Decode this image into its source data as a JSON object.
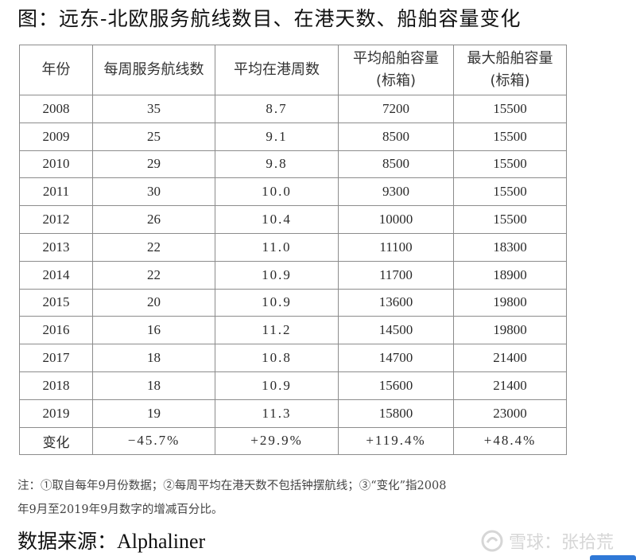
{
  "title": "图：远东-北欧服务航线数目、在港天数、船舶容量变化",
  "table": {
    "headers": [
      [
        "年份"
      ],
      [
        "每周服务航线数"
      ],
      [
        "平均在港周数"
      ],
      [
        "平均船舶容量",
        "(标箱)"
      ],
      [
        "最大船舶容量",
        "(标箱)"
      ]
    ],
    "rows": [
      [
        "2008",
        "35",
        "8.7",
        "7200",
        "15500"
      ],
      [
        "2009",
        "25",
        "9.1",
        "8500",
        "15500"
      ],
      [
        "2010",
        "29",
        "9.8",
        "8500",
        "15500"
      ],
      [
        "2011",
        "30",
        "10.0",
        "9300",
        "15500"
      ],
      [
        "2012",
        "26",
        "10.4",
        "10000",
        "15500"
      ],
      [
        "2013",
        "22",
        "11.0",
        "11100",
        "18300"
      ],
      [
        "2014",
        "22",
        "10.9",
        "11700",
        "18900"
      ],
      [
        "2015",
        "20",
        "10.9",
        "13600",
        "19800"
      ],
      [
        "2016",
        "16",
        "11.2",
        "14500",
        "19800"
      ],
      [
        "2017",
        "18",
        "10.8",
        "14700",
        "21400"
      ],
      [
        "2018",
        "18",
        "10.9",
        "15600",
        "21400"
      ],
      [
        "2019",
        "19",
        "11.3",
        "15800",
        "23000"
      ]
    ],
    "change_row": [
      "变化",
      "−45.7%",
      "+29.9%",
      "+119.4%",
      "+48.4%"
    ]
  },
  "note": {
    "line1": "注：①取自每年9月份数据；②每周平均在港天数不包括钟摆航线；③“变化”指2008",
    "line2": "年9月至2019年9月数字的增减百分比。"
  },
  "source": {
    "label": "数据来源：",
    "name": "Alphaliner"
  },
  "watermark": {
    "text": "雪球：张拾荒",
    "icon": "snowball-logo-icon"
  },
  "colors": {
    "border": "#8c8c8c",
    "watermark": "#d6d6d6",
    "accent": "#2f78d6"
  }
}
